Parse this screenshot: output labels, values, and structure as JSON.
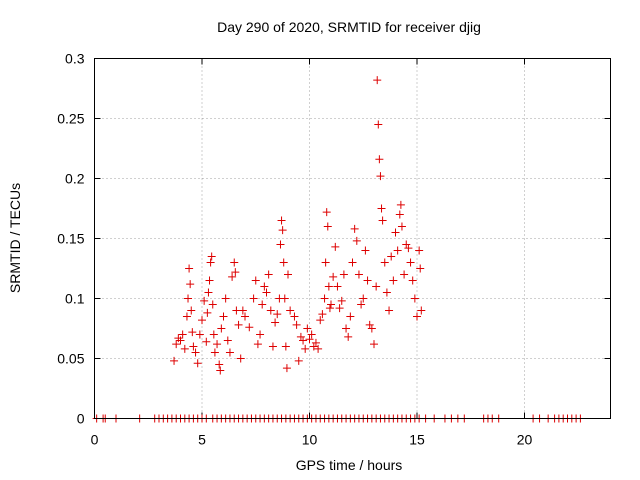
{
  "chart_data": {
    "type": "scatter",
    "title": "Day 290 of 2020, SRMTID for receiver djig",
    "xlabel": "GPS time / hours",
    "ylabel": "SRMTID / TECUs",
    "xlim": [
      0,
      24
    ],
    "ylim": [
      0,
      0.3
    ],
    "xticks": [
      0,
      5,
      10,
      15,
      20
    ],
    "xtick_labels": [
      "0",
      "5",
      "10",
      "15",
      "20"
    ],
    "yticks": [
      0,
      0.05,
      0.1,
      0.15,
      0.2,
      0.25,
      0.3
    ],
    "ytick_labels": [
      "0",
      "0.05",
      "0.1",
      "0.15",
      "0.2",
      "0.25",
      "0.3"
    ],
    "grid": true,
    "marker": "plus",
    "color": "#dd0000",
    "series": [
      {
        "name": "SRMTID",
        "points": [
          [
            3.7,
            0.048
          ],
          [
            3.8,
            0.062
          ],
          [
            3.9,
            0.067
          ],
          [
            4.0,
            0.065
          ],
          [
            4.1,
            0.07
          ],
          [
            4.2,
            0.058
          ],
          [
            4.3,
            0.085
          ],
          [
            4.35,
            0.1
          ],
          [
            4.4,
            0.125
          ],
          [
            4.45,
            0.112
          ],
          [
            4.5,
            0.09
          ],
          [
            4.55,
            0.072
          ],
          [
            4.6,
            0.06
          ],
          [
            4.7,
            0.055
          ],
          [
            4.8,
            0.046
          ],
          [
            4.9,
            0.07
          ],
          [
            5.0,
            0.082
          ],
          [
            5.1,
            0.098
          ],
          [
            5.2,
            0.064
          ],
          [
            5.25,
            0.088
          ],
          [
            5.3,
            0.105
          ],
          [
            5.35,
            0.115
          ],
          [
            5.4,
            0.13
          ],
          [
            5.45,
            0.135
          ],
          [
            5.5,
            0.095
          ],
          [
            5.55,
            0.07
          ],
          [
            5.6,
            0.055
          ],
          [
            5.7,
            0.062
          ],
          [
            5.8,
            0.045
          ],
          [
            5.85,
            0.04
          ],
          [
            5.9,
            0.075
          ],
          [
            6.0,
            0.085
          ],
          [
            6.1,
            0.1
          ],
          [
            6.2,
            0.065
          ],
          [
            6.3,
            0.055
          ],
          [
            6.4,
            0.118
          ],
          [
            6.5,
            0.13
          ],
          [
            6.55,
            0.122
          ],
          [
            6.6,
            0.09
          ],
          [
            6.7,
            0.078
          ],
          [
            6.8,
            0.05
          ],
          [
            6.9,
            0.09
          ],
          [
            7.0,
            0.085
          ],
          [
            7.2,
            0.076
          ],
          [
            7.4,
            0.1
          ],
          [
            7.5,
            0.115
          ],
          [
            7.6,
            0.062
          ],
          [
            7.7,
            0.07
          ],
          [
            7.8,
            0.095
          ],
          [
            7.9,
            0.11
          ],
          [
            8.0,
            0.105
          ],
          [
            8.1,
            0.12
          ],
          [
            8.2,
            0.09
          ],
          [
            8.3,
            0.06
          ],
          [
            8.4,
            0.08
          ],
          [
            8.5,
            0.087
          ],
          [
            8.6,
            0.1
          ],
          [
            8.65,
            0.145
          ],
          [
            8.7,
            0.165
          ],
          [
            8.75,
            0.157
          ],
          [
            8.8,
            0.13
          ],
          [
            8.85,
            0.1
          ],
          [
            8.9,
            0.06
          ],
          [
            8.95,
            0.042
          ],
          [
            9.0,
            0.12
          ],
          [
            9.1,
            0.09
          ],
          [
            9.3,
            0.085
          ],
          [
            9.4,
            0.078
          ],
          [
            9.5,
            0.048
          ],
          [
            9.6,
            0.068
          ],
          [
            9.7,
            0.065
          ],
          [
            9.8,
            0.058
          ],
          [
            9.9,
            0.075
          ],
          [
            10.0,
            0.066
          ],
          [
            10.1,
            0.07
          ],
          [
            10.2,
            0.06
          ],
          [
            10.3,
            0.063
          ],
          [
            10.4,
            0.058
          ],
          [
            10.5,
            0.082
          ],
          [
            10.6,
            0.087
          ],
          [
            10.7,
            0.1
          ],
          [
            10.75,
            0.13
          ],
          [
            10.8,
            0.172
          ],
          [
            10.85,
            0.16
          ],
          [
            10.9,
            0.11
          ],
          [
            10.95,
            0.092
          ],
          [
            11.0,
            0.095
          ],
          [
            11.1,
            0.118
          ],
          [
            11.2,
            0.143
          ],
          [
            11.3,
            0.11
          ],
          [
            11.4,
            0.092
          ],
          [
            11.5,
            0.098
          ],
          [
            11.6,
            0.12
          ],
          [
            11.7,
            0.075
          ],
          [
            11.8,
            0.068
          ],
          [
            11.9,
            0.085
          ],
          [
            12.0,
            0.13
          ],
          [
            12.1,
            0.158
          ],
          [
            12.2,
            0.148
          ],
          [
            12.3,
            0.12
          ],
          [
            12.4,
            0.095
          ],
          [
            12.5,
            0.1
          ],
          [
            12.6,
            0.14
          ],
          [
            12.7,
            0.115
          ],
          [
            12.8,
            0.078
          ],
          [
            12.9,
            0.075
          ],
          [
            13.0,
            0.062
          ],
          [
            13.1,
            0.11
          ],
          [
            13.15,
            0.282
          ],
          [
            13.2,
            0.245
          ],
          [
            13.25,
            0.216
          ],
          [
            13.3,
            0.202
          ],
          [
            13.35,
            0.175
          ],
          [
            13.4,
            0.165
          ],
          [
            13.5,
            0.13
          ],
          [
            13.6,
            0.105
          ],
          [
            13.7,
            0.09
          ],
          [
            13.8,
            0.135
          ],
          [
            13.9,
            0.115
          ],
          [
            14.0,
            0.155
          ],
          [
            14.1,
            0.14
          ],
          [
            14.2,
            0.17
          ],
          [
            14.25,
            0.178
          ],
          [
            14.3,
            0.16
          ],
          [
            14.4,
            0.12
          ],
          [
            14.5,
            0.145
          ],
          [
            14.6,
            0.142
          ],
          [
            14.7,
            0.13
          ],
          [
            14.8,
            0.115
          ],
          [
            14.9,
            0.1
          ],
          [
            15.0,
            0.085
          ],
          [
            15.1,
            0.14
          ],
          [
            15.15,
            0.125
          ],
          [
            15.2,
            0.09
          ]
        ],
        "zero_points": [
          0.1,
          0.4,
          0.5,
          1.0,
          2.1,
          2.8,
          3.0,
          3.2,
          3.4,
          3.6,
          3.8,
          4.0,
          4.2,
          4.4,
          4.6,
          4.8,
          5.0,
          5.2,
          5.5,
          5.7,
          5.9,
          6.1,
          6.3,
          6.5,
          6.7,
          6.9,
          7.1,
          7.3,
          7.5,
          7.7,
          7.9,
          8.1,
          8.3,
          8.5,
          8.7,
          8.9,
          9.1,
          9.3,
          9.5,
          9.7,
          9.9,
          10.1,
          10.3,
          10.5,
          10.7,
          10.9,
          11.1,
          11.3,
          11.5,
          11.7,
          11.9,
          12.1,
          12.3,
          12.5,
          12.7,
          12.9,
          13.1,
          13.3,
          13.5,
          13.7,
          13.9,
          14.1,
          14.3,
          14.5,
          14.7,
          14.9,
          15.1,
          15.4,
          15.8,
          16.3,
          16.6,
          16.9,
          17.2,
          18.1,
          18.3,
          18.5,
          18.8,
          20.4,
          20.7,
          21.1,
          21.4,
          21.6,
          21.8,
          22.0,
          22.2,
          22.4,
          22.6
        ]
      }
    ]
  }
}
